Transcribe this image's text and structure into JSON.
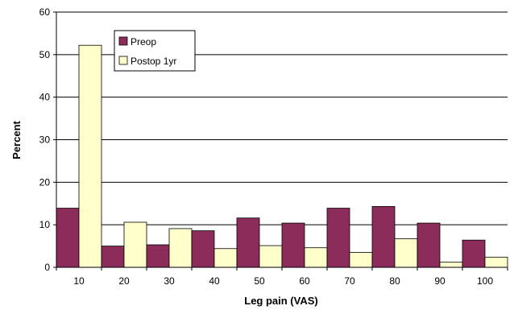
{
  "chart_data": {
    "type": "bar",
    "categories": [
      "10",
      "20",
      "30",
      "40",
      "50",
      "60",
      "70",
      "80",
      "90",
      "100"
    ],
    "series": [
      {
        "name": "Preop",
        "values": [
          13.9,
          5.0,
          5.3,
          8.6,
          11.6,
          10.4,
          13.9,
          14.3,
          10.4,
          6.4
        ],
        "color": "#8b2c5a"
      },
      {
        "name": "Postop 1yr",
        "values": [
          52.2,
          10.6,
          9.1,
          4.4,
          5.1,
          4.6,
          3.5,
          6.7,
          1.2,
          2.4
        ],
        "color": "#ffffcc"
      }
    ],
    "title": "",
    "xlabel": "Leg pain (VAS)",
    "ylabel": "Percent",
    "ylim": [
      0,
      60
    ],
    "yticks": [
      "0",
      "10",
      "20",
      "30",
      "40",
      "50",
      "60"
    ],
    "grid": true,
    "legend_position": "top-left inside plot"
  }
}
